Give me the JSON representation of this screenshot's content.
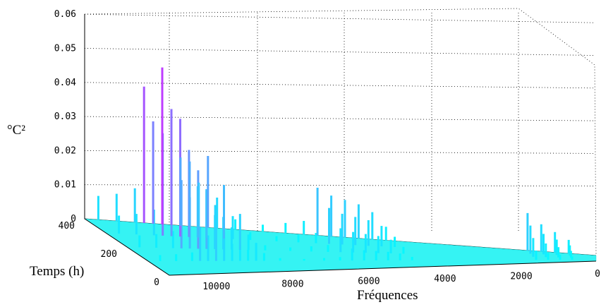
{
  "chart_data": {
    "type": "3d-spectrum",
    "title": "",
    "zlabel": "°C²",
    "xlabel": "Fréquences",
    "ylabel": "Temps (h)",
    "z_ticks": [
      "0",
      "0.01",
      "0.02",
      "0.03",
      "0.04",
      "0.05",
      "0.06"
    ],
    "freq_ticks": [
      "10000",
      "8000",
      "6000",
      "4000",
      "2000",
      "0"
    ],
    "time_ticks": [
      "400",
      "200",
      "0"
    ],
    "zlim": [
      0,
      0.06
    ],
    "freq_range": [
      0,
      11200
    ],
    "time_range": [
      0,
      400
    ],
    "colormap": [
      "#00ffff",
      "#ff00ff"
    ],
    "grid": true,
    "peaks": [
      {
        "frequency": 10900,
        "time": 400,
        "value": 0.007
      },
      {
        "frequency": 10500,
        "time": 400,
        "value": 0.008
      },
      {
        "frequency": 10100,
        "time": 400,
        "value": 0.01
      },
      {
        "frequency": 9900,
        "time": 400,
        "value": 0.04
      },
      {
        "frequency": 9700,
        "time": 400,
        "value": 0.03
      },
      {
        "frequency": 9500,
        "time": 400,
        "value": 0.046
      },
      {
        "frequency": 9300,
        "time": 400,
        "value": 0.034
      },
      {
        "frequency": 9100,
        "time": 400,
        "value": 0.02
      },
      {
        "frequency": 8900,
        "time": 400,
        "value": 0.019
      },
      {
        "frequency": 8700,
        "time": 400,
        "value": 0.013
      },
      {
        "frequency": 8500,
        "time": 400,
        "value": 0.021
      },
      {
        "frequency": 8300,
        "time": 400,
        "value": 0.009
      },
      {
        "frequency": 7900,
        "time": 400,
        "value": 0.003
      },
      {
        "frequency": 7300,
        "time": 400,
        "value": 0.002
      },
      {
        "frequency": 6800,
        "time": 400,
        "value": 0.003
      },
      {
        "frequency": 6400,
        "time": 400,
        "value": 0.004
      },
      {
        "frequency": 6100,
        "time": 400,
        "value": 0.014
      },
      {
        "frequency": 5800,
        "time": 400,
        "value": 0.012
      },
      {
        "frequency": 5500,
        "time": 400,
        "value": 0.011
      },
      {
        "frequency": 5200,
        "time": 400,
        "value": 0.01
      },
      {
        "frequency": 4900,
        "time": 400,
        "value": 0.008
      },
      {
        "frequency": 4600,
        "time": 400,
        "value": 0.004
      },
      {
        "frequency": 1500,
        "time": 400,
        "value": 0.011
      },
      {
        "frequency": 1200,
        "time": 400,
        "value": 0.008
      },
      {
        "frequency": 900,
        "time": 400,
        "value": 0.006
      },
      {
        "frequency": 600,
        "time": 400,
        "value": 0.004
      }
    ]
  }
}
